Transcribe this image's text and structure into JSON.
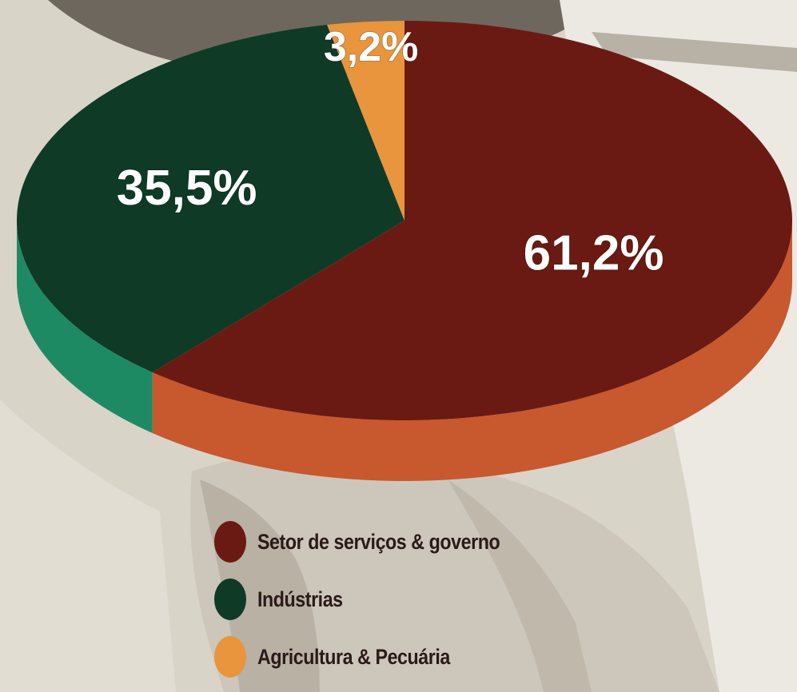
{
  "chart_data": {
    "type": "pie",
    "title": "",
    "slices": [
      {
        "label": "Setor de serviços & governo",
        "value": 61.2,
        "value_label": "61,2%",
        "color": "#6a1a12",
        "side_color": "#c8582e"
      },
      {
        "label": "Indústrias",
        "value": 35.5,
        "value_label": "35,5%",
        "color": "#0f3a26",
        "side_color": "#1e8a64"
      },
      {
        "label": "Agricultura & Pecuária",
        "value": 3.2,
        "value_label": "3,2%",
        "color": "#e8953e",
        "side_color": "#c07a30"
      }
    ],
    "legend_position": "bottom",
    "style": "3d"
  }
}
